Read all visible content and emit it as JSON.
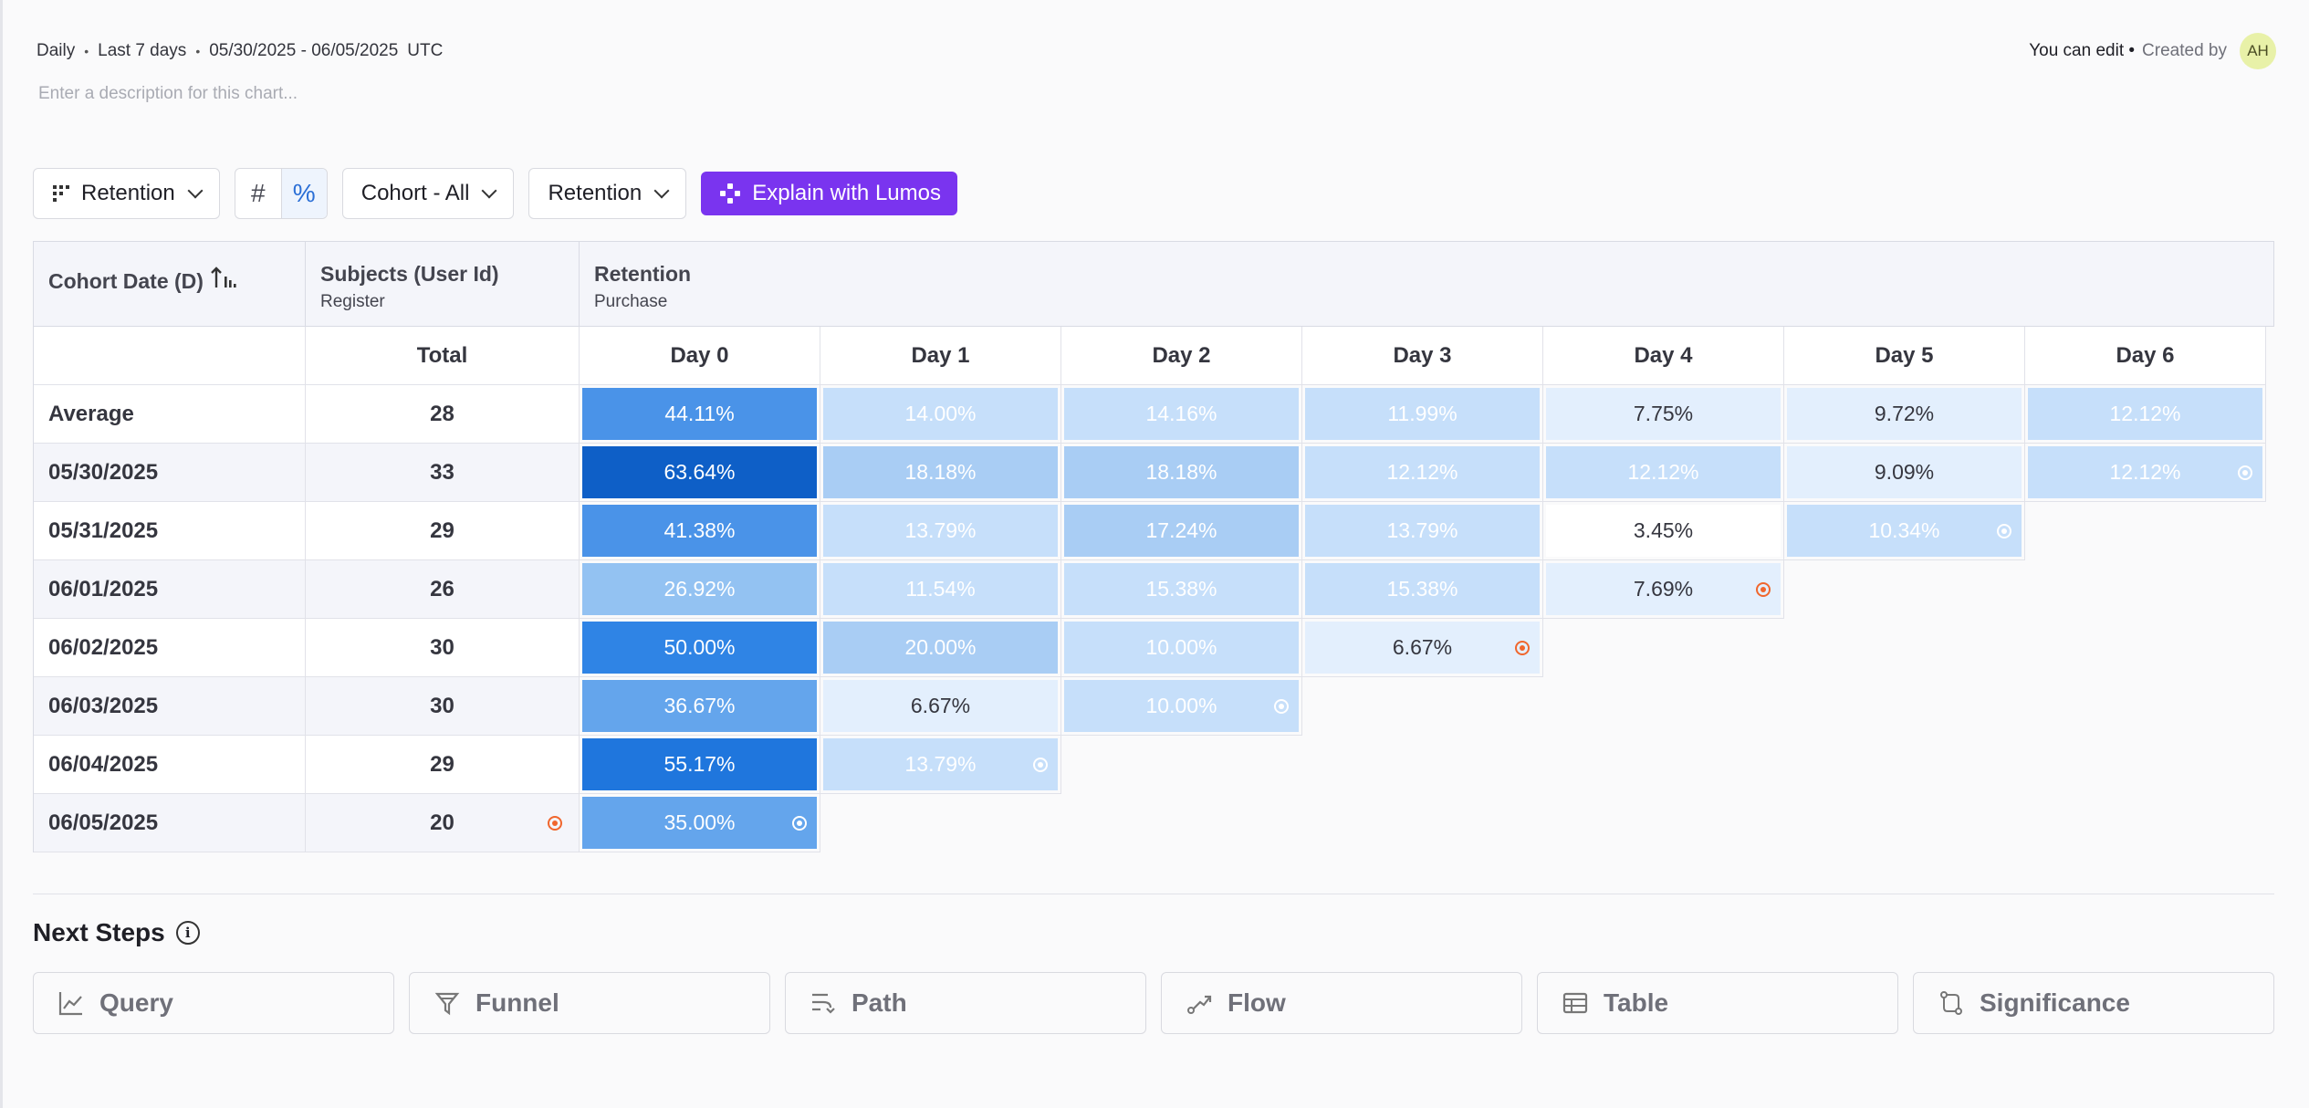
{
  "meta": {
    "granularity": "Daily",
    "range_label": "Last 7 days",
    "date_range": "05/30/2025 - 06/05/2025",
    "timezone": "UTC",
    "description_placeholder": "Enter a description for this chart..."
  },
  "owner": {
    "edit_text": "You can edit •",
    "created_text": "Created by",
    "avatar_initials": "AH"
  },
  "toolbar": {
    "view_label": "Retention",
    "count_symbol": "#",
    "percent_symbol": "%",
    "cohort_label": "Cohort - All",
    "metric_label": "Retention",
    "lumos_label": "Explain with Lumos"
  },
  "table": {
    "headers": {
      "cohort_date": "Cohort Date (D)",
      "subjects": "Subjects (User Id)",
      "subjects_event": "Register",
      "retention": "Retention",
      "retention_event": "Purchase",
      "total": "Total",
      "days": [
        "Day 0",
        "Day 1",
        "Day 2",
        "Day 3",
        "Day 4",
        "Day 5",
        "Day 6"
      ]
    },
    "rows": [
      {
        "label": "Average",
        "total": "28",
        "total_marker": false,
        "values": [
          "44.11%",
          "14.00%",
          "14.16%",
          "11.99%",
          "7.75%",
          "9.72%",
          "12.12%"
        ],
        "numbers": [
          44.11,
          14.0,
          14.16,
          11.99,
          7.75,
          9.72,
          12.12
        ],
        "marker_day": null,
        "marker_color": null
      },
      {
        "label": "05/30/2025",
        "total": "33",
        "total_marker": false,
        "values": [
          "63.64%",
          "18.18%",
          "18.18%",
          "12.12%",
          "12.12%",
          "9.09%",
          "12.12%"
        ],
        "numbers": [
          63.64,
          18.18,
          18.18,
          12.12,
          12.12,
          9.09,
          12.12
        ],
        "marker_day": 6,
        "marker_color": "white"
      },
      {
        "label": "05/31/2025",
        "total": "29",
        "total_marker": false,
        "values": [
          "41.38%",
          "13.79%",
          "17.24%",
          "13.79%",
          "3.45%",
          "10.34%"
        ],
        "numbers": [
          41.38,
          13.79,
          17.24,
          13.79,
          3.45,
          10.34
        ],
        "marker_day": 5,
        "marker_color": "white"
      },
      {
        "label": "06/01/2025",
        "total": "26",
        "total_marker": false,
        "values": [
          "26.92%",
          "11.54%",
          "15.38%",
          "15.38%",
          "7.69%"
        ],
        "numbers": [
          26.92,
          11.54,
          15.38,
          15.38,
          7.69
        ],
        "marker_day": 4,
        "marker_color": "orange"
      },
      {
        "label": "06/02/2025",
        "total": "30",
        "total_marker": false,
        "values": [
          "50.00%",
          "20.00%",
          "10.00%",
          "6.67%"
        ],
        "numbers": [
          50.0,
          20.0,
          10.0,
          6.67
        ],
        "marker_day": 3,
        "marker_color": "orange"
      },
      {
        "label": "06/03/2025",
        "total": "30",
        "total_marker": false,
        "values": [
          "36.67%",
          "6.67%",
          "10.00%"
        ],
        "numbers": [
          36.67,
          6.67,
          10.0
        ],
        "marker_day": 2,
        "marker_color": "white"
      },
      {
        "label": "06/04/2025",
        "total": "29",
        "total_marker": false,
        "values": [
          "55.17%",
          "13.79%"
        ],
        "numbers": [
          55.17,
          13.79
        ],
        "marker_day": 1,
        "marker_color": "white"
      },
      {
        "label": "06/05/2025",
        "total": "20",
        "total_marker": true,
        "values": [
          "35.00%"
        ],
        "numbers": [
          35.0
        ],
        "marker_day": 0,
        "marker_color": "white"
      }
    ]
  },
  "next_steps": {
    "title": "Next Steps",
    "items": [
      {
        "label": "Query",
        "icon": "line-chart-icon"
      },
      {
        "label": "Funnel",
        "icon": "funnel-icon"
      },
      {
        "label": "Path",
        "icon": "path-icon"
      },
      {
        "label": "Flow",
        "icon": "flow-icon"
      },
      {
        "label": "Table",
        "icon": "table-icon"
      },
      {
        "label": "Significance",
        "icon": "significance-icon"
      }
    ]
  }
}
